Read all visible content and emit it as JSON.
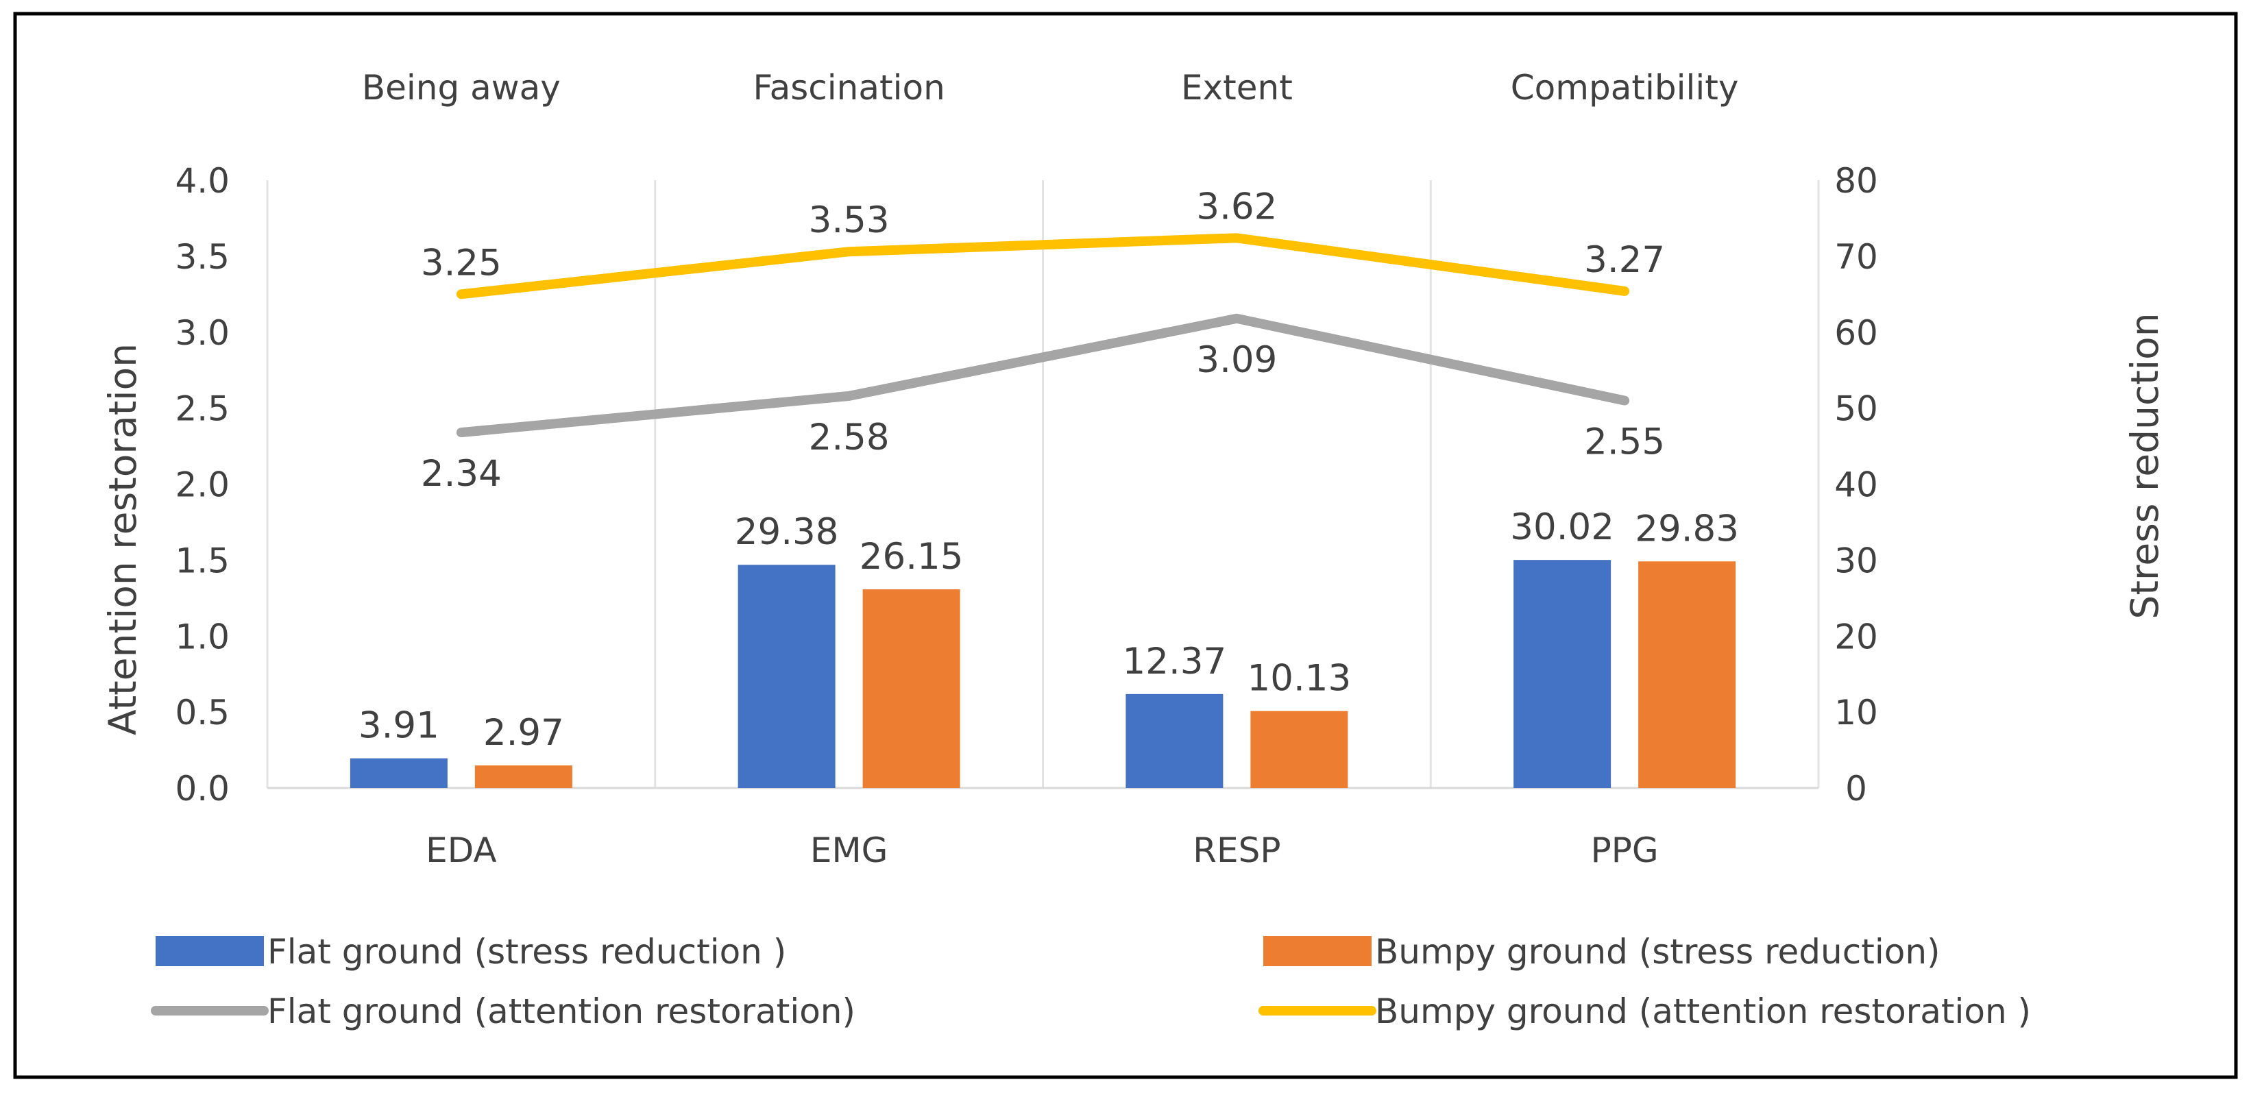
{
  "chart_data": {
    "type": "bar",
    "categories": [
      "EDA",
      "EMG",
      "RESP",
      "PPG"
    ],
    "top_categories": [
      "Being away",
      "Fascination",
      "Extent",
      "Compatibility"
    ],
    "series": [
      {
        "name": "Flat ground (stress reduction )",
        "type": "bar",
        "axis": "right",
        "color": "#4472C4",
        "values": [
          3.91,
          29.38,
          12.37,
          30.02
        ],
        "labels": [
          "3.91",
          "29.38",
          "12.37",
          "30.02"
        ]
      },
      {
        "name": "Bumpy ground (stress reduction)",
        "type": "bar",
        "axis": "right",
        "color": "#ED7D31",
        "values": [
          2.97,
          26.15,
          10.13,
          29.83
        ],
        "labels": [
          "2.97",
          "26.15",
          "10.13",
          "29.83"
        ]
      },
      {
        "name": "Flat ground (attention restoration)",
        "type": "line",
        "axis": "left",
        "color": "#A5A5A5",
        "values": [
          2.34,
          2.58,
          3.09,
          2.55
        ],
        "labels": [
          "2.34",
          "2.58",
          "3.09",
          "2.55"
        ]
      },
      {
        "name": "Bumpy ground (attention restoration )",
        "type": "line",
        "axis": "left",
        "color": "#FFC000",
        "values": [
          3.25,
          3.53,
          3.62,
          3.27
        ],
        "labels": [
          "3.25",
          "3.53",
          "3.62",
          "3.27"
        ]
      }
    ],
    "ylabel": "Attention restoration",
    "y2label": "Stress reduction",
    "ylim": [
      0,
      4.0
    ],
    "y2lim": [
      0,
      80
    ],
    "yticks": [
      "0.0",
      "0.5",
      "1.0",
      "1.5",
      "2.0",
      "2.5",
      "3.0",
      "3.5",
      "4.0"
    ],
    "y2ticks": [
      "0",
      "10",
      "20",
      "30",
      "40",
      "50",
      "60",
      "70",
      "80"
    ],
    "grid": "vertical",
    "legend_position": "bottom"
  }
}
